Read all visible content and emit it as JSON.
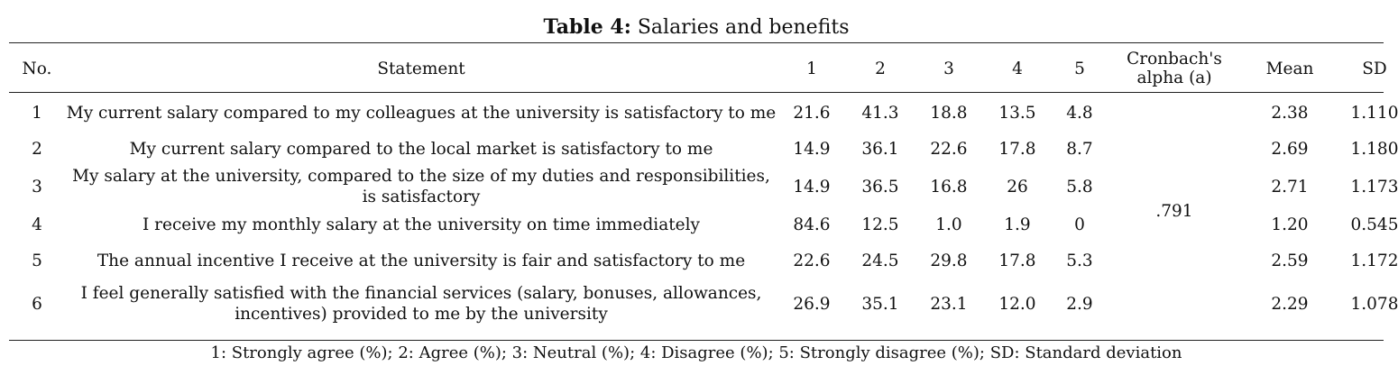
{
  "caption": {
    "label": "Table 4:",
    "title": "Salaries and benefits"
  },
  "headers": {
    "no": "No.",
    "statement": "Statement",
    "c1": "1",
    "c2": "2",
    "c3": "3",
    "c4": "4",
    "c5": "5",
    "alpha": "Cronbach's alpha (a)",
    "mean": "Mean",
    "sd": "SD"
  },
  "alpha_value": ".791",
  "rows": [
    {
      "no": "1",
      "statement": "My current salary compared to my colleagues at the university is satisfactory to me",
      "c1": "21.6",
      "c2": "41.3",
      "c3": "18.8",
      "c4": "13.5",
      "c5": "4.8",
      "mean": "2.38",
      "sd": "1.110"
    },
    {
      "no": "2",
      "statement": "My current salary compared to the local market is satisfactory to me",
      "c1": "14.9",
      "c2": "36.1",
      "c3": "22.6",
      "c4": "17.8",
      "c5": "8.7",
      "mean": "2.69",
      "sd": "1.180"
    },
    {
      "no": "3",
      "statement": "My salary at the university, compared to the size of my duties and responsibilities, is satisfactory",
      "c1": "14.9",
      "c2": "36.5",
      "c3": "16.8",
      "c4": "26",
      "c5": "5.8",
      "mean": "2.71",
      "sd": "1.173"
    },
    {
      "no": "4",
      "statement": "I receive my monthly salary at the university on time immediately",
      "c1": "84.6",
      "c2": "12.5",
      "c3": "1.0",
      "c4": "1.9",
      "c5": "0",
      "mean": "1.20",
      "sd": "0.545"
    },
    {
      "no": "5",
      "statement": "The annual incentive I receive at the university is fair and satisfactory to me",
      "c1": "22.6",
      "c2": "24.5",
      "c3": "29.8",
      "c4": "17.8",
      "c5": "5.3",
      "mean": "2.59",
      "sd": "1.172"
    },
    {
      "no": "6",
      "statement": "I feel generally satisfied with the financial services (salary, bonuses, allowances, incentives) provided to me by the university",
      "c1": "26.9",
      "c2": "35.1",
      "c3": "23.1",
      "c4": "12.0",
      "c5": "2.9",
      "mean": "2.29",
      "sd": "1.078"
    }
  ],
  "footnote": "1: Strongly agree (%); 2: Agree (%); 3: Neutral (%); 4: Disagree (%); 5: Strongly disagree (%); SD: Standard deviation"
}
